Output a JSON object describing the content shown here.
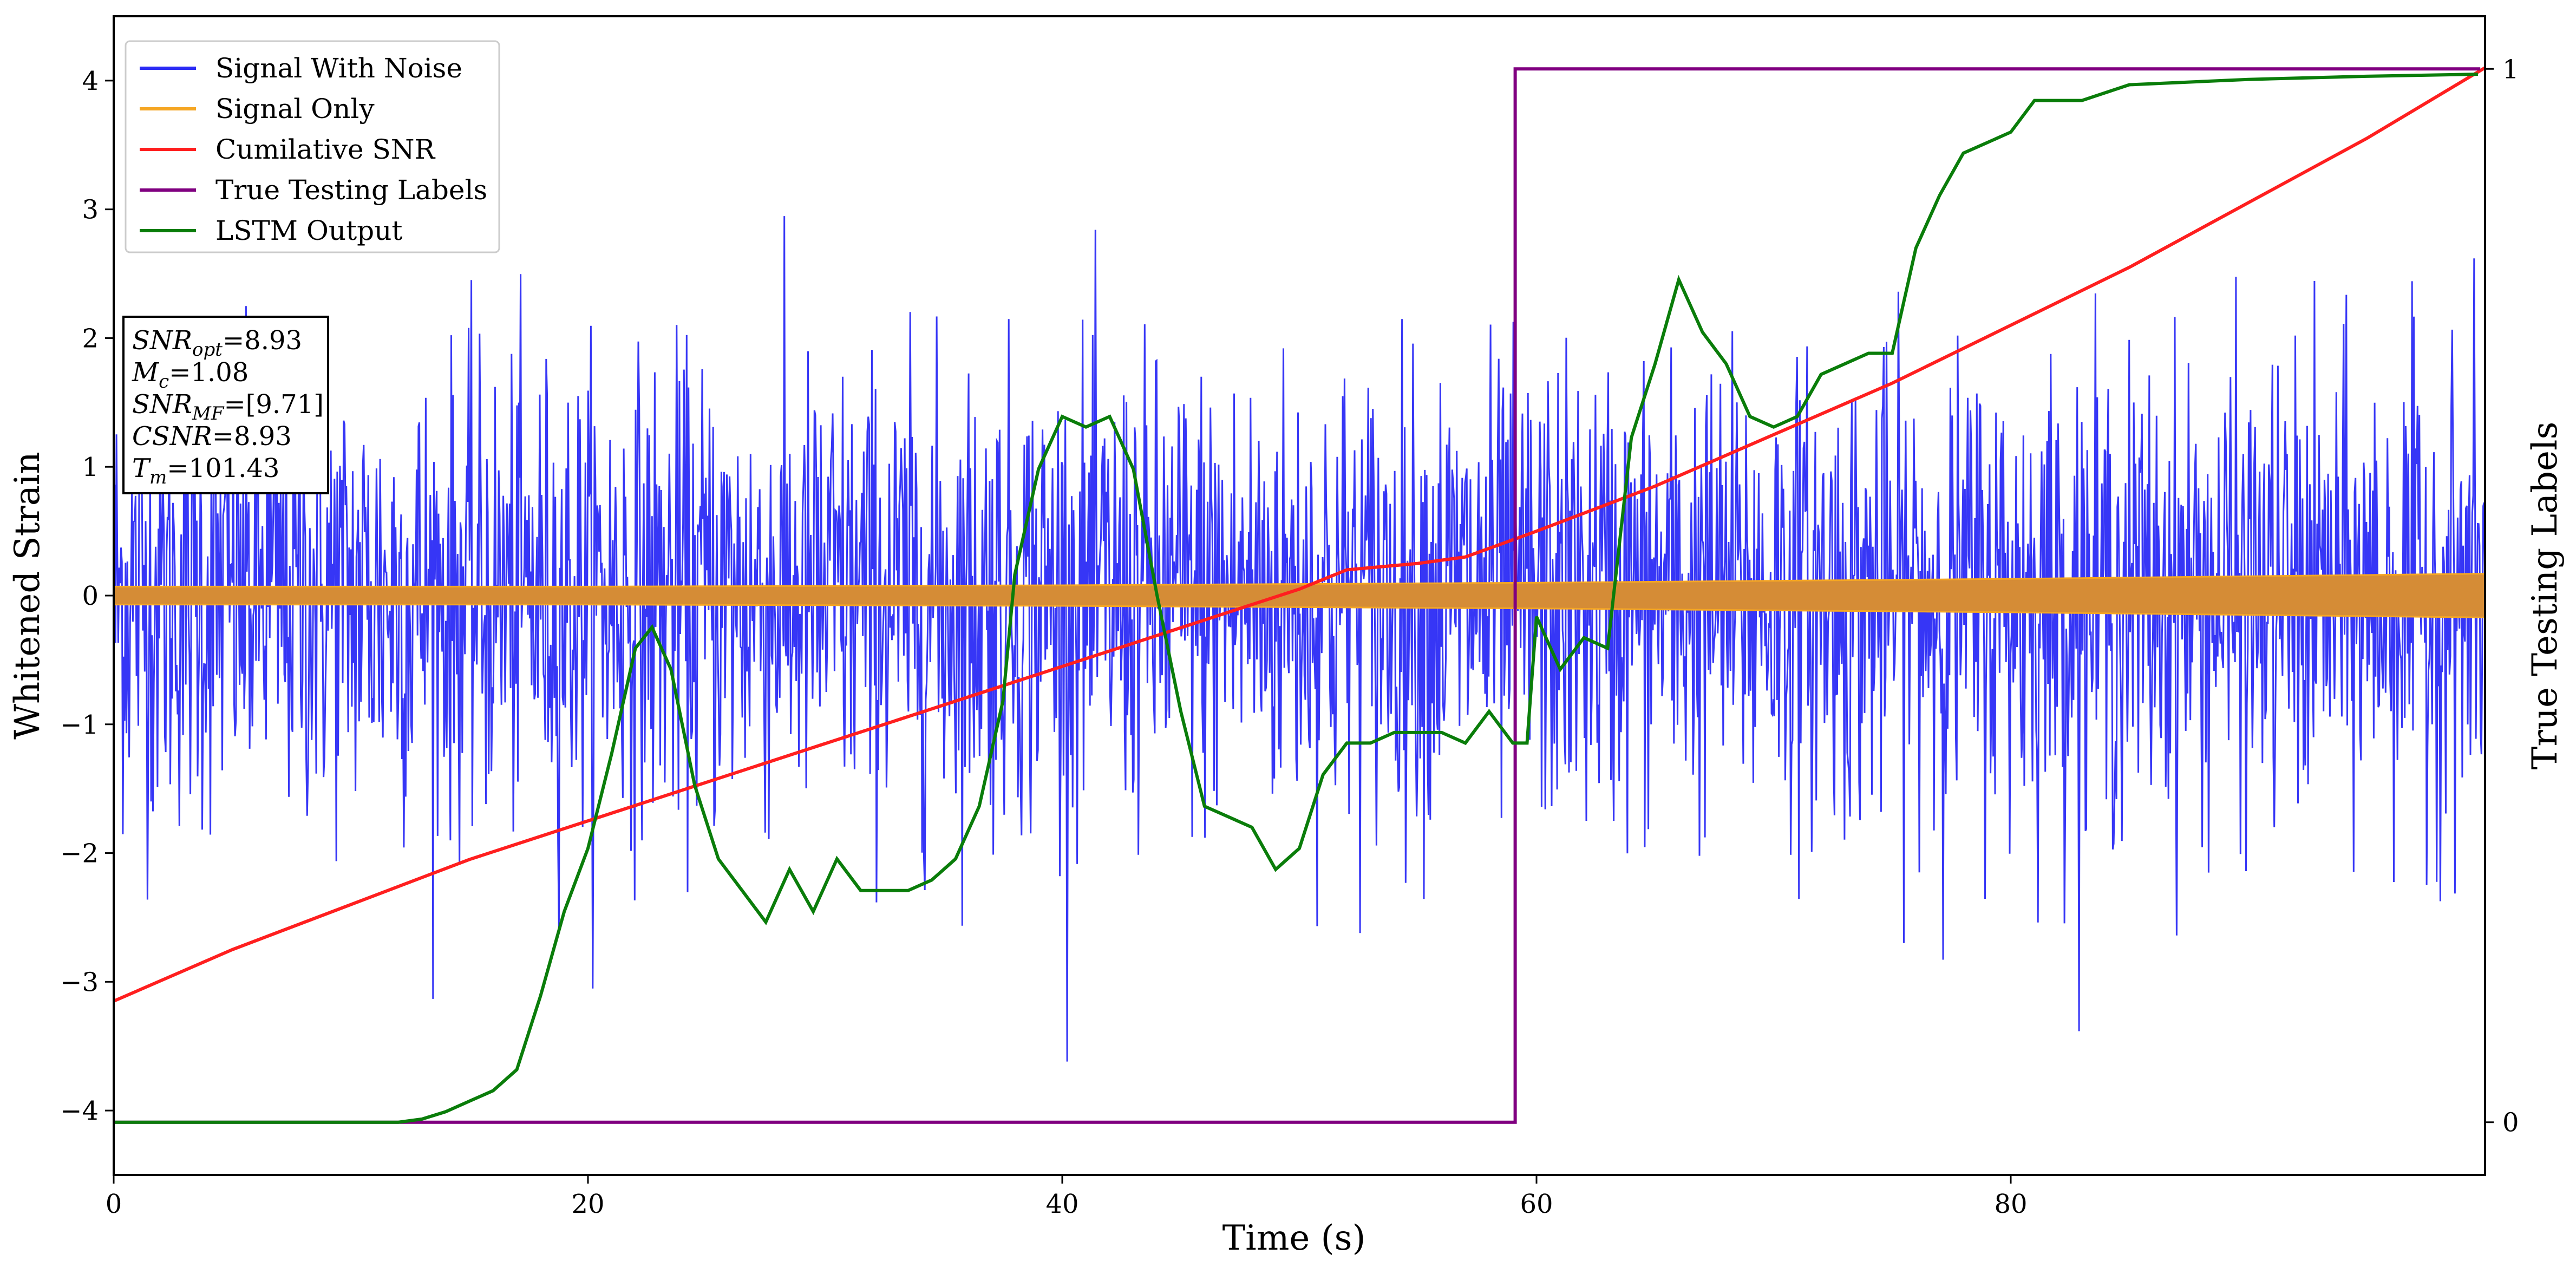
{
  "chart_data": {
    "type": "line",
    "xlabel": "Time (s)",
    "ylabel": "Whitened Strain",
    "ylabel_right": "True Testing Labels",
    "xlim": [
      0,
      100
    ],
    "ylim": [
      -4.5,
      4.5
    ],
    "ylim_right": [
      -0.05,
      1.05
    ],
    "x_ticks": [
      0,
      20,
      40,
      60,
      80
    ],
    "y_ticks": [
      -4,
      -3,
      -2,
      -1,
      0,
      1,
      2,
      3,
      4
    ],
    "y_ticks_right": [
      0,
      1
    ],
    "legend_position": "top-left",
    "series": [
      {
        "name": "Signal With Noise",
        "color": "#2b2bf5",
        "axis": "left",
        "description_values": {
          "noise_std": 0.9,
          "samples": 2600
        }
      },
      {
        "name": "Signal Only",
        "color": "#f5a623",
        "axis": "left",
        "amplitude_envelope": [
          [
            0,
            0.07
          ],
          [
            20,
            0.07
          ],
          [
            40,
            0.08
          ],
          [
            60,
            0.1
          ],
          [
            80,
            0.13
          ],
          [
            100,
            0.17
          ]
        ]
      },
      {
        "name": "Cumilative SNR",
        "color": "#ff1f1f",
        "axis": "left",
        "points": [
          [
            0,
            -3.15
          ],
          [
            5,
            -2.75
          ],
          [
            10,
            -2.4
          ],
          [
            15,
            -2.05
          ],
          [
            20,
            -1.75
          ],
          [
            25,
            -1.45
          ],
          [
            30,
            -1.15
          ],
          [
            35,
            -0.85
          ],
          [
            40,
            -0.55
          ],
          [
            45,
            -0.25
          ],
          [
            50,
            0.05
          ],
          [
            52,
            0.2
          ],
          [
            55,
            0.25
          ],
          [
            57,
            0.3
          ],
          [
            60,
            0.5
          ],
          [
            65,
            0.85
          ],
          [
            70,
            1.25
          ],
          [
            75,
            1.65
          ],
          [
            80,
            2.1
          ],
          [
            85,
            2.55
          ],
          [
            90,
            3.05
          ],
          [
            95,
            3.55
          ],
          [
            100,
            4.1
          ]
        ]
      },
      {
        "name": "True Testing Labels",
        "color": "#800080",
        "axis": "right",
        "points": [
          [
            0,
            0
          ],
          [
            59.1,
            0
          ],
          [
            59.1,
            1
          ],
          [
            99.8,
            1
          ]
        ]
      },
      {
        "name": "LSTM Output",
        "color": "#0a7d0a",
        "axis": "right",
        "points": [
          [
            0,
            0
          ],
          [
            12,
            0
          ],
          [
            13,
            0.003
          ],
          [
            14,
            0.01
          ],
          [
            15,
            0.02
          ],
          [
            16,
            0.03
          ],
          [
            17,
            0.05
          ],
          [
            18,
            0.12
          ],
          [
            19,
            0.2
          ],
          [
            20,
            0.26
          ],
          [
            21,
            0.35
          ],
          [
            22,
            0.45
          ],
          [
            22.7,
            0.47
          ],
          [
            23.5,
            0.43
          ],
          [
            24.5,
            0.32
          ],
          [
            25.5,
            0.25
          ],
          [
            26.5,
            0.22
          ],
          [
            27.5,
            0.19
          ],
          [
            28.5,
            0.24
          ],
          [
            29.5,
            0.2
          ],
          [
            30.5,
            0.25
          ],
          [
            31.5,
            0.22
          ],
          [
            32.5,
            0.22
          ],
          [
            33.5,
            0.22
          ],
          [
            34.5,
            0.23
          ],
          [
            35.5,
            0.25
          ],
          [
            36.5,
            0.3
          ],
          [
            37.5,
            0.4
          ],
          [
            38,
            0.52
          ],
          [
            39,
            0.62
          ],
          [
            40,
            0.67
          ],
          [
            41,
            0.66
          ],
          [
            42,
            0.67
          ],
          [
            43,
            0.62
          ],
          [
            44,
            0.5
          ],
          [
            45,
            0.39
          ],
          [
            46,
            0.3
          ],
          [
            47,
            0.29
          ],
          [
            48,
            0.28
          ],
          [
            49,
            0.24
          ],
          [
            50,
            0.26
          ],
          [
            51,
            0.33
          ],
          [
            52,
            0.36
          ],
          [
            53,
            0.36
          ],
          [
            54,
            0.37
          ],
          [
            55,
            0.37
          ],
          [
            56,
            0.37
          ],
          [
            57,
            0.36
          ],
          [
            58,
            0.39
          ],
          [
            59,
            0.36
          ],
          [
            59.6,
            0.36
          ],
          [
            60,
            0.48
          ],
          [
            61,
            0.43
          ],
          [
            62,
            0.46
          ],
          [
            63,
            0.45
          ],
          [
            64,
            0.65
          ],
          [
            65,
            0.72
          ],
          [
            66,
            0.8
          ],
          [
            67,
            0.75
          ],
          [
            68,
            0.72
          ],
          [
            69,
            0.67
          ],
          [
            70,
            0.66
          ],
          [
            71,
            0.67
          ],
          [
            72,
            0.71
          ],
          [
            73,
            0.72
          ],
          [
            74,
            0.73
          ],
          [
            75,
            0.73
          ],
          [
            76,
            0.83
          ],
          [
            77,
            0.88
          ],
          [
            78,
            0.92
          ],
          [
            79,
            0.93
          ],
          [
            80,
            0.94
          ],
          [
            81,
            0.97
          ],
          [
            83,
            0.97
          ],
          [
            85,
            0.985
          ],
          [
            90,
            0.99
          ],
          [
            95,
            0.993
          ],
          [
            99.7,
            0.995
          ]
        ]
      }
    ]
  },
  "legend": {
    "items": [
      {
        "label": "Signal With Noise",
        "color": "#2b2bf5"
      },
      {
        "label": "Signal Only",
        "color": "#f5a623"
      },
      {
        "label": "Cumilative SNR",
        "color": "#ff1f1f"
      },
      {
        "label": "True Testing Labels",
        "color": "#800080"
      },
      {
        "label": "LSTM Output",
        "color": "#0a7d0a"
      }
    ]
  },
  "info_box": {
    "lines": [
      {
        "label": "SNR",
        "sub": "opt",
        "value": "=8.93"
      },
      {
        "label": "M",
        "sub": "c",
        "value": "=1.08"
      },
      {
        "label": "SNR",
        "sub": "MF",
        "value": "=[9.71]"
      },
      {
        "label": "CSNR",
        "sub": "",
        "value": "=8.93"
      },
      {
        "label": "T",
        "sub": "m",
        "value": "=101.43"
      }
    ]
  }
}
